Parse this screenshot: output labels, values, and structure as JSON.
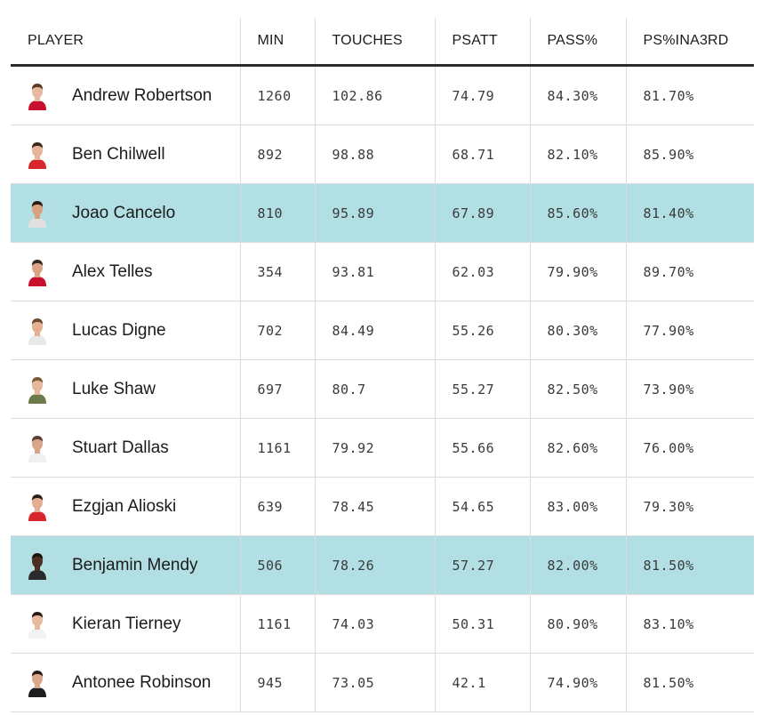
{
  "table": {
    "headers": {
      "player": "PLAYER",
      "min": "MIN",
      "touches": "TOUCHES",
      "psatt": "PSATT",
      "pass_pct": "PASS%",
      "ps_in_a3rd": "PS%INA3RD"
    },
    "rows": [
      {
        "name": "Andrew Robertson",
        "min": "1260",
        "touches": "102.86",
        "psatt": "74.79",
        "pass_pct": "84.30%",
        "ps_in_a3rd": "81.70%",
        "highlighted": false,
        "skin": "#e8b9a0",
        "hair": "#5a3b25",
        "shirt": "#c8102e"
      },
      {
        "name": "Ben Chilwell",
        "min": "892",
        "touches": "98.88",
        "psatt": "68.71",
        "pass_pct": "82.10%",
        "ps_in_a3rd": "85.90%",
        "highlighted": false,
        "skin": "#e6b49a",
        "hair": "#3b2a1e",
        "shirt": "#d7262d"
      },
      {
        "name": "Joao Cancelo",
        "min": "810",
        "touches": "95.89",
        "psatt": "67.89",
        "pass_pct": "85.60%",
        "ps_in_a3rd": "81.40%",
        "highlighted": true,
        "skin": "#d9a27e",
        "hair": "#2b1d14",
        "shirt": "#e0e0e0"
      },
      {
        "name": "Alex Telles",
        "min": "354",
        "touches": "93.81",
        "psatt": "62.03",
        "pass_pct": "79.90%",
        "ps_in_a3rd": "89.70%",
        "highlighted": false,
        "skin": "#dca486",
        "hair": "#3a281c",
        "shirt": "#c8102e"
      },
      {
        "name": "Lucas Digne",
        "min": "702",
        "touches": "84.49",
        "psatt": "55.26",
        "pass_pct": "80.30%",
        "ps_in_a3rd": "77.90%",
        "highlighted": false,
        "skin": "#e3b092",
        "hair": "#6b4a2f",
        "shirt": "#e8e8e8"
      },
      {
        "name": "Luke Shaw",
        "min": "697",
        "touches": "80.7",
        "psatt": "55.27",
        "pass_pct": "82.50%",
        "ps_in_a3rd": "73.90%",
        "highlighted": false,
        "skin": "#e6b79b",
        "hair": "#7a5a3a",
        "shirt": "#6b7b4a"
      },
      {
        "name": "Stuart Dallas",
        "min": "1161",
        "touches": "79.92",
        "psatt": "55.66",
        "pass_pct": "82.60%",
        "ps_in_a3rd": "76.00%",
        "highlighted": false,
        "skin": "#d9a58a",
        "hair": "#5a4030",
        "shirt": "#f0f0f0"
      },
      {
        "name": "Ezgjan Alioski",
        "min": "639",
        "touches": "78.45",
        "psatt": "54.65",
        "pass_pct": "83.00%",
        "ps_in_a3rd": "79.30%",
        "highlighted": false,
        "skin": "#e2ad92",
        "hair": "#2e2018",
        "shirt": "#d8262f"
      },
      {
        "name": "Benjamin Mendy",
        "min": "506",
        "touches": "78.26",
        "psatt": "57.27",
        "pass_pct": "82.00%",
        "ps_in_a3rd": "81.50%",
        "highlighted": true,
        "skin": "#4a3022",
        "hair": "#1a120c",
        "shirt": "#2a2a2a"
      },
      {
        "name": "Kieran Tierney",
        "min": "1161",
        "touches": "74.03",
        "psatt": "50.31",
        "pass_pct": "80.90%",
        "ps_in_a3rd": "83.10%",
        "highlighted": false,
        "skin": "#e8b99f",
        "hair": "#2a1c14",
        "shirt": "#f2f2f2"
      },
      {
        "name": "Antonee Robinson",
        "min": "945",
        "touches": "73.05",
        "psatt": "42.1",
        "pass_pct": "74.90%",
        "ps_in_a3rd": "81.50%",
        "highlighted": false,
        "skin": "#dca88c",
        "hair": "#2a1c14",
        "shirt": "#1e1e1e"
      }
    ]
  },
  "colors": {
    "highlight_row": "#b2dfe3",
    "header_rule": "#2b2b2b",
    "gridline": "#dcdcdc"
  }
}
